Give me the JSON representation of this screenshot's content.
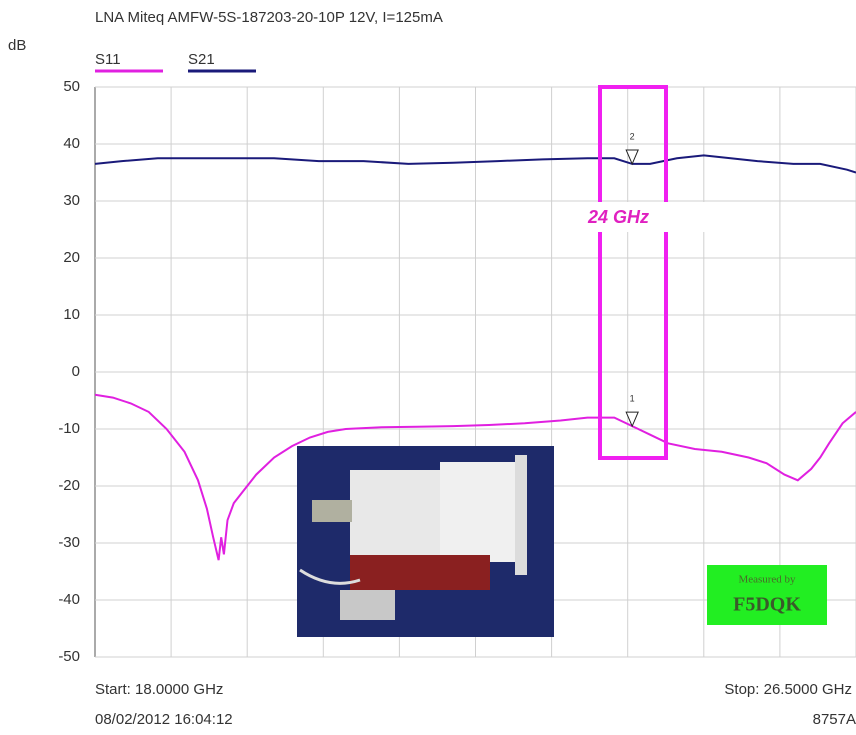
{
  "chart_data": {
    "type": "line",
    "title": "LNA Miteq AMFW-5S-187203-20-10P  12V, I=125mA",
    "y_label": "dB",
    "xlim": [
      18,
      26.5
    ],
    "x_divisions": 10,
    "ylim": [
      -50,
      50
    ],
    "yticks": [
      50,
      40,
      30,
      20,
      10,
      0,
      -10,
      -20,
      -30,
      -40,
      -50
    ],
    "grid": true,
    "series": [
      {
        "name": "S11",
        "color": "#e020e0",
        "x": [
          18.0,
          18.2,
          18.4,
          18.6,
          18.8,
          19.0,
          19.15,
          19.25,
          19.32,
          19.38,
          19.41,
          19.44,
          19.48,
          19.55,
          19.65,
          19.8,
          20.0,
          20.2,
          20.4,
          20.6,
          20.8,
          21.2,
          21.6,
          22.0,
          22.4,
          22.8,
          23.2,
          23.5,
          23.8,
          24.0,
          24.2,
          24.4,
          24.7,
          25.0,
          25.3,
          25.5,
          25.7,
          25.85,
          26.0,
          26.1,
          26.2,
          26.35,
          26.5
        ],
        "values": [
          -4,
          -4.5,
          -5.5,
          -7,
          -10,
          -14,
          -19,
          -24,
          -29,
          -33,
          -29,
          -32,
          -26,
          -23,
          -21,
          -18,
          -15,
          -13,
          -11.5,
          -10.5,
          -10,
          -9.7,
          -9.6,
          -9.5,
          -9.3,
          -9,
          -8.5,
          -8,
          -8,
          -9.5,
          -11,
          -12.5,
          -13.5,
          -14,
          -15,
          -16,
          -18,
          -19,
          -17,
          -15,
          -12.5,
          -9,
          -7
        ]
      },
      {
        "name": "S21",
        "color": "#1a1a7a",
        "x": [
          18.0,
          18.3,
          18.7,
          19.0,
          19.5,
          20.0,
          20.5,
          21.0,
          21.5,
          22.0,
          22.5,
          23.0,
          23.5,
          23.8,
          24.0,
          24.2,
          24.5,
          24.8,
          25.1,
          25.4,
          25.8,
          26.1,
          26.4,
          26.5
        ],
        "values": [
          36.5,
          37,
          37.5,
          37.5,
          37.5,
          37.5,
          37,
          37,
          36.5,
          36.7,
          37,
          37.3,
          37.5,
          37.5,
          36.5,
          36.5,
          37.5,
          38,
          37.5,
          37,
          36.5,
          36.5,
          35.5,
          35
        ]
      }
    ],
    "markers": [
      {
        "label": "1",
        "x": 24,
        "y": -9.5
      },
      {
        "label": "2",
        "x": 24,
        "y": 36.5
      }
    ],
    "annotation": "24 GHz",
    "start_label": "Start: 18.0000 GHz",
    "stop_label": "Stop: 26.5000 GHz",
    "timestamp": "08/02/2012 16:04:12",
    "instrument": "8757A",
    "badge": {
      "line1": "Measured by",
      "line2": "F5DQK"
    }
  }
}
